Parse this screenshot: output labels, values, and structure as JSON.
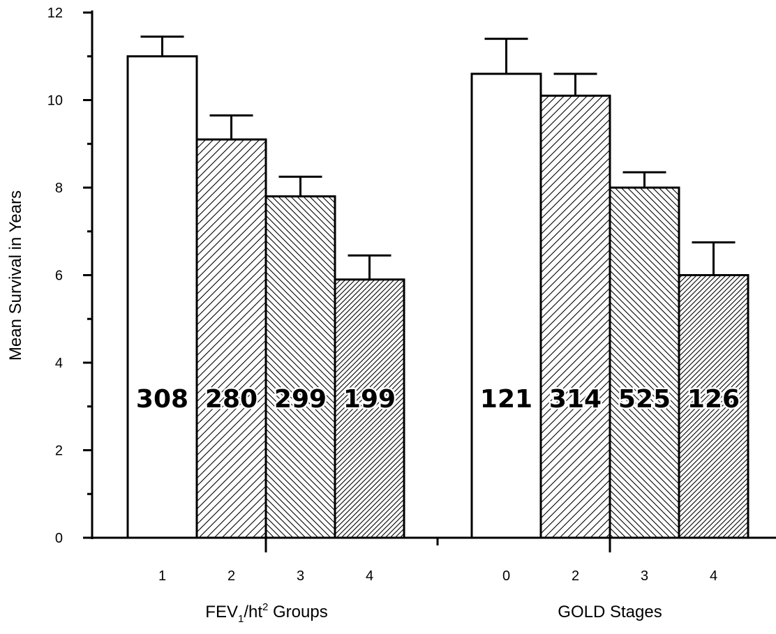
{
  "chart_data": {
    "type": "bar",
    "ylabel": "Mean Survival in Years",
    "ylim": [
      0,
      12
    ],
    "y_ticks": [
      "0",
      "2",
      "4",
      "6",
      "8",
      "10",
      "12"
    ],
    "grid": false,
    "legend": "none",
    "groups": [
      {
        "name_main": "FEV",
        "name_sub": "1",
        "name_rest": "/ht",
        "name_sup": "2",
        "name_tail": " Groups",
        "categories": [
          "1",
          "2",
          "3",
          "4"
        ],
        "values": [
          11.0,
          9.1,
          7.8,
          5.9
        ],
        "errors": [
          0.45,
          0.55,
          0.45,
          0.55
        ],
        "counts": [
          "308",
          "280",
          "299",
          "199"
        ],
        "patterns": [
          "none",
          "fwd-wide",
          "back",
          "fwd-dense"
        ]
      },
      {
        "name_main": "GOLD Stages",
        "categories": [
          "0",
          "2",
          "3",
          "4"
        ],
        "values": [
          10.6,
          10.1,
          8.0,
          6.0
        ],
        "errors": [
          0.8,
          0.5,
          0.35,
          0.75
        ],
        "counts": [
          "121",
          "314",
          "525",
          "126"
        ],
        "patterns": [
          "none",
          "fwd-wide",
          "back",
          "fwd-dense"
        ]
      }
    ]
  }
}
